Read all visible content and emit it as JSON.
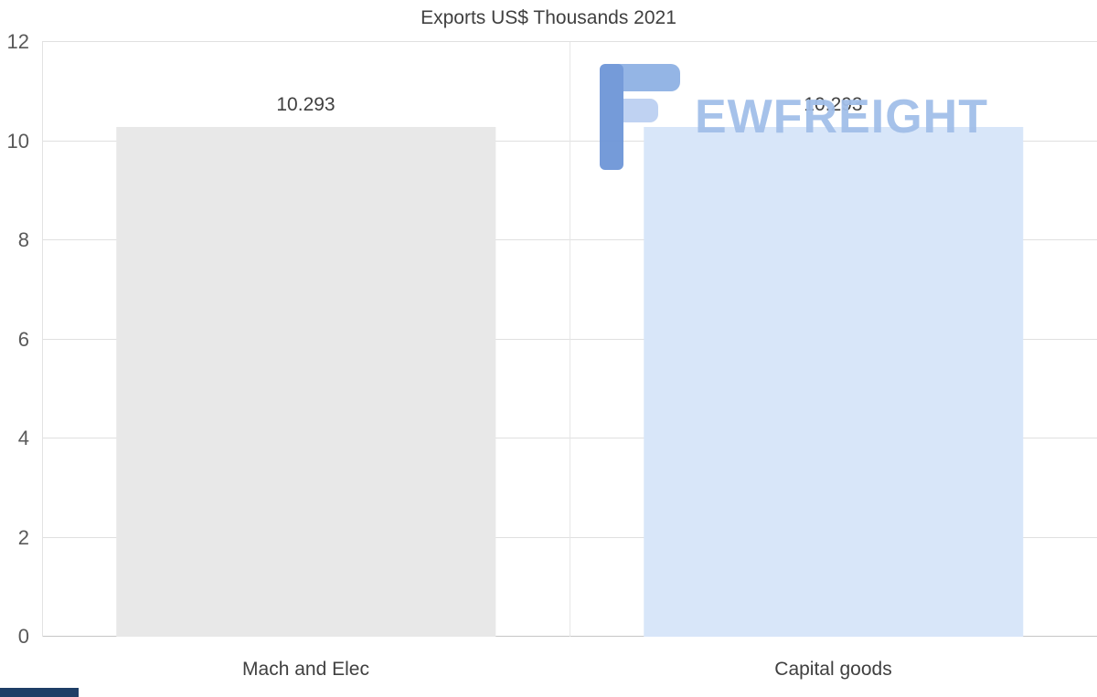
{
  "title": "Exports US$ Thousands 2021",
  "watermark": {
    "text": "EWFREIGHT",
    "text_color": "#a2bfe9",
    "logo_colors": {
      "stem": "#6e96d8",
      "top_bar": "#8fb2e4",
      "mid_bar": "#bcd0f2"
    }
  },
  "accents": {
    "bottom_left_bar": "#1e3e66"
  },
  "chart_data": {
    "type": "bar",
    "title": "Exports US$ Thousands 2021",
    "categories": [
      "Mach and Elec",
      "Capital goods"
    ],
    "values": [
      10.293,
      10.293
    ],
    "data_labels": [
      "10.293",
      "10.293"
    ],
    "xlabel": "",
    "ylabel": "",
    "ylim": [
      0,
      12
    ],
    "yticks": [
      0,
      2,
      4,
      6,
      8,
      10,
      12
    ],
    "bar_colors": [
      "#e8e8e8",
      "#d8e6f9"
    ],
    "grid": true,
    "legend_position": "none"
  }
}
